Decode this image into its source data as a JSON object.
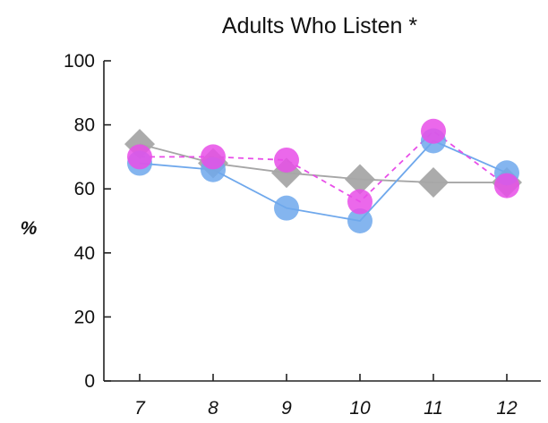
{
  "chart_data": {
    "type": "line",
    "title": "Adults Who Listen *",
    "xlabel": "",
    "ylabel": "%",
    "categories": [
      "7",
      "8",
      "9",
      "10",
      "11",
      "12"
    ],
    "ylim": [
      0,
      100
    ],
    "yticks": [
      0,
      20,
      40,
      60,
      80,
      100
    ],
    "grid": false,
    "legend": "none",
    "series": [
      {
        "values": [
          74,
          68,
          65,
          63,
          62,
          62
        ],
        "color": "#a6a6a6",
        "marker": "diamond",
        "line_style": "solid"
      },
      {
        "values": [
          68,
          66,
          54,
          50,
          75,
          65
        ],
        "color": "#6fa8ec",
        "marker": "circle",
        "line_style": "solid"
      },
      {
        "values": [
          70,
          70,
          69,
          56,
          78,
          61
        ],
        "color": "#e84ee8",
        "marker": "circle",
        "line_style": "dashed"
      }
    ]
  }
}
